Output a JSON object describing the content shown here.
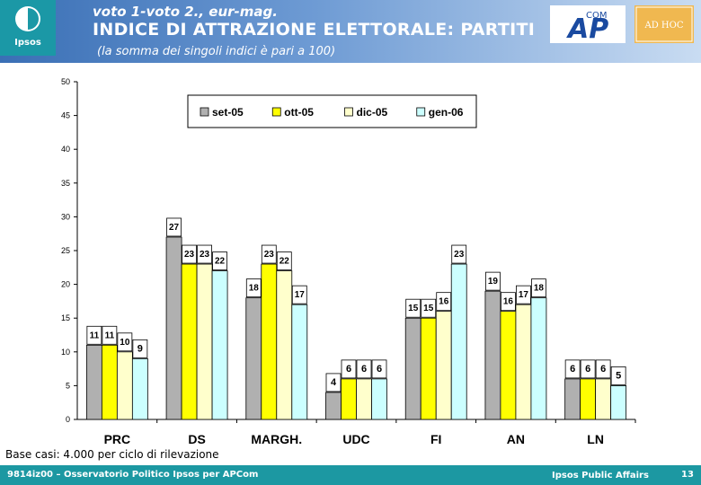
{
  "header": {
    "title_line1": "voto 1-voto 2., eur-mag.",
    "title_line2": "INDICE DI ATTRAZIONE ELETTORALE: PARTITI",
    "subtitle": "(la somma dei singoli indici è pari a 100)",
    "ipsos_logo": "Ipsos",
    "apcom_logo": "AP",
    "apcom_sup": "COM",
    "partner_logo": "AD HOC"
  },
  "chart_data": {
    "type": "bar",
    "categories": [
      "PRC",
      "DS",
      "MARGH.",
      "UDC",
      "FI",
      "AN",
      "LN"
    ],
    "series": [
      {
        "name": "set-05",
        "color": "#b0b0b0",
        "values": [
          11,
          27,
          18,
          4,
          15,
          19,
          6
        ]
      },
      {
        "name": "ott-05",
        "color": "#ffff00",
        "values": [
          11,
          23,
          23,
          6,
          15,
          16,
          6
        ]
      },
      {
        "name": "dic-05",
        "color": "#ffffcc",
        "values": [
          10,
          23,
          22,
          6,
          16,
          17,
          6
        ]
      },
      {
        "name": "gen-06",
        "color": "#ccffff",
        "values": [
          9,
          22,
          17,
          6,
          23,
          18,
          5
        ]
      }
    ],
    "ylim": [
      0,
      50
    ],
    "yticks": [
      0,
      5,
      10,
      15,
      20,
      25,
      30,
      35,
      40,
      45,
      50
    ],
    "grid": false,
    "legend_position": "top"
  },
  "footer": {
    "note": "Base casi: 4.000 per ciclo di rilevazione",
    "left": "9814iz00 – Osservatorio Politico Ipsos per APCom",
    "middle": "Ipsos Public Affairs",
    "page": "13"
  },
  "colors": {
    "header_blue": "#3a6fb5",
    "ipsos_teal": "#1b98a6",
    "footer_teal": "#1c98a2",
    "apcom_blue": "#1a4aa0"
  }
}
